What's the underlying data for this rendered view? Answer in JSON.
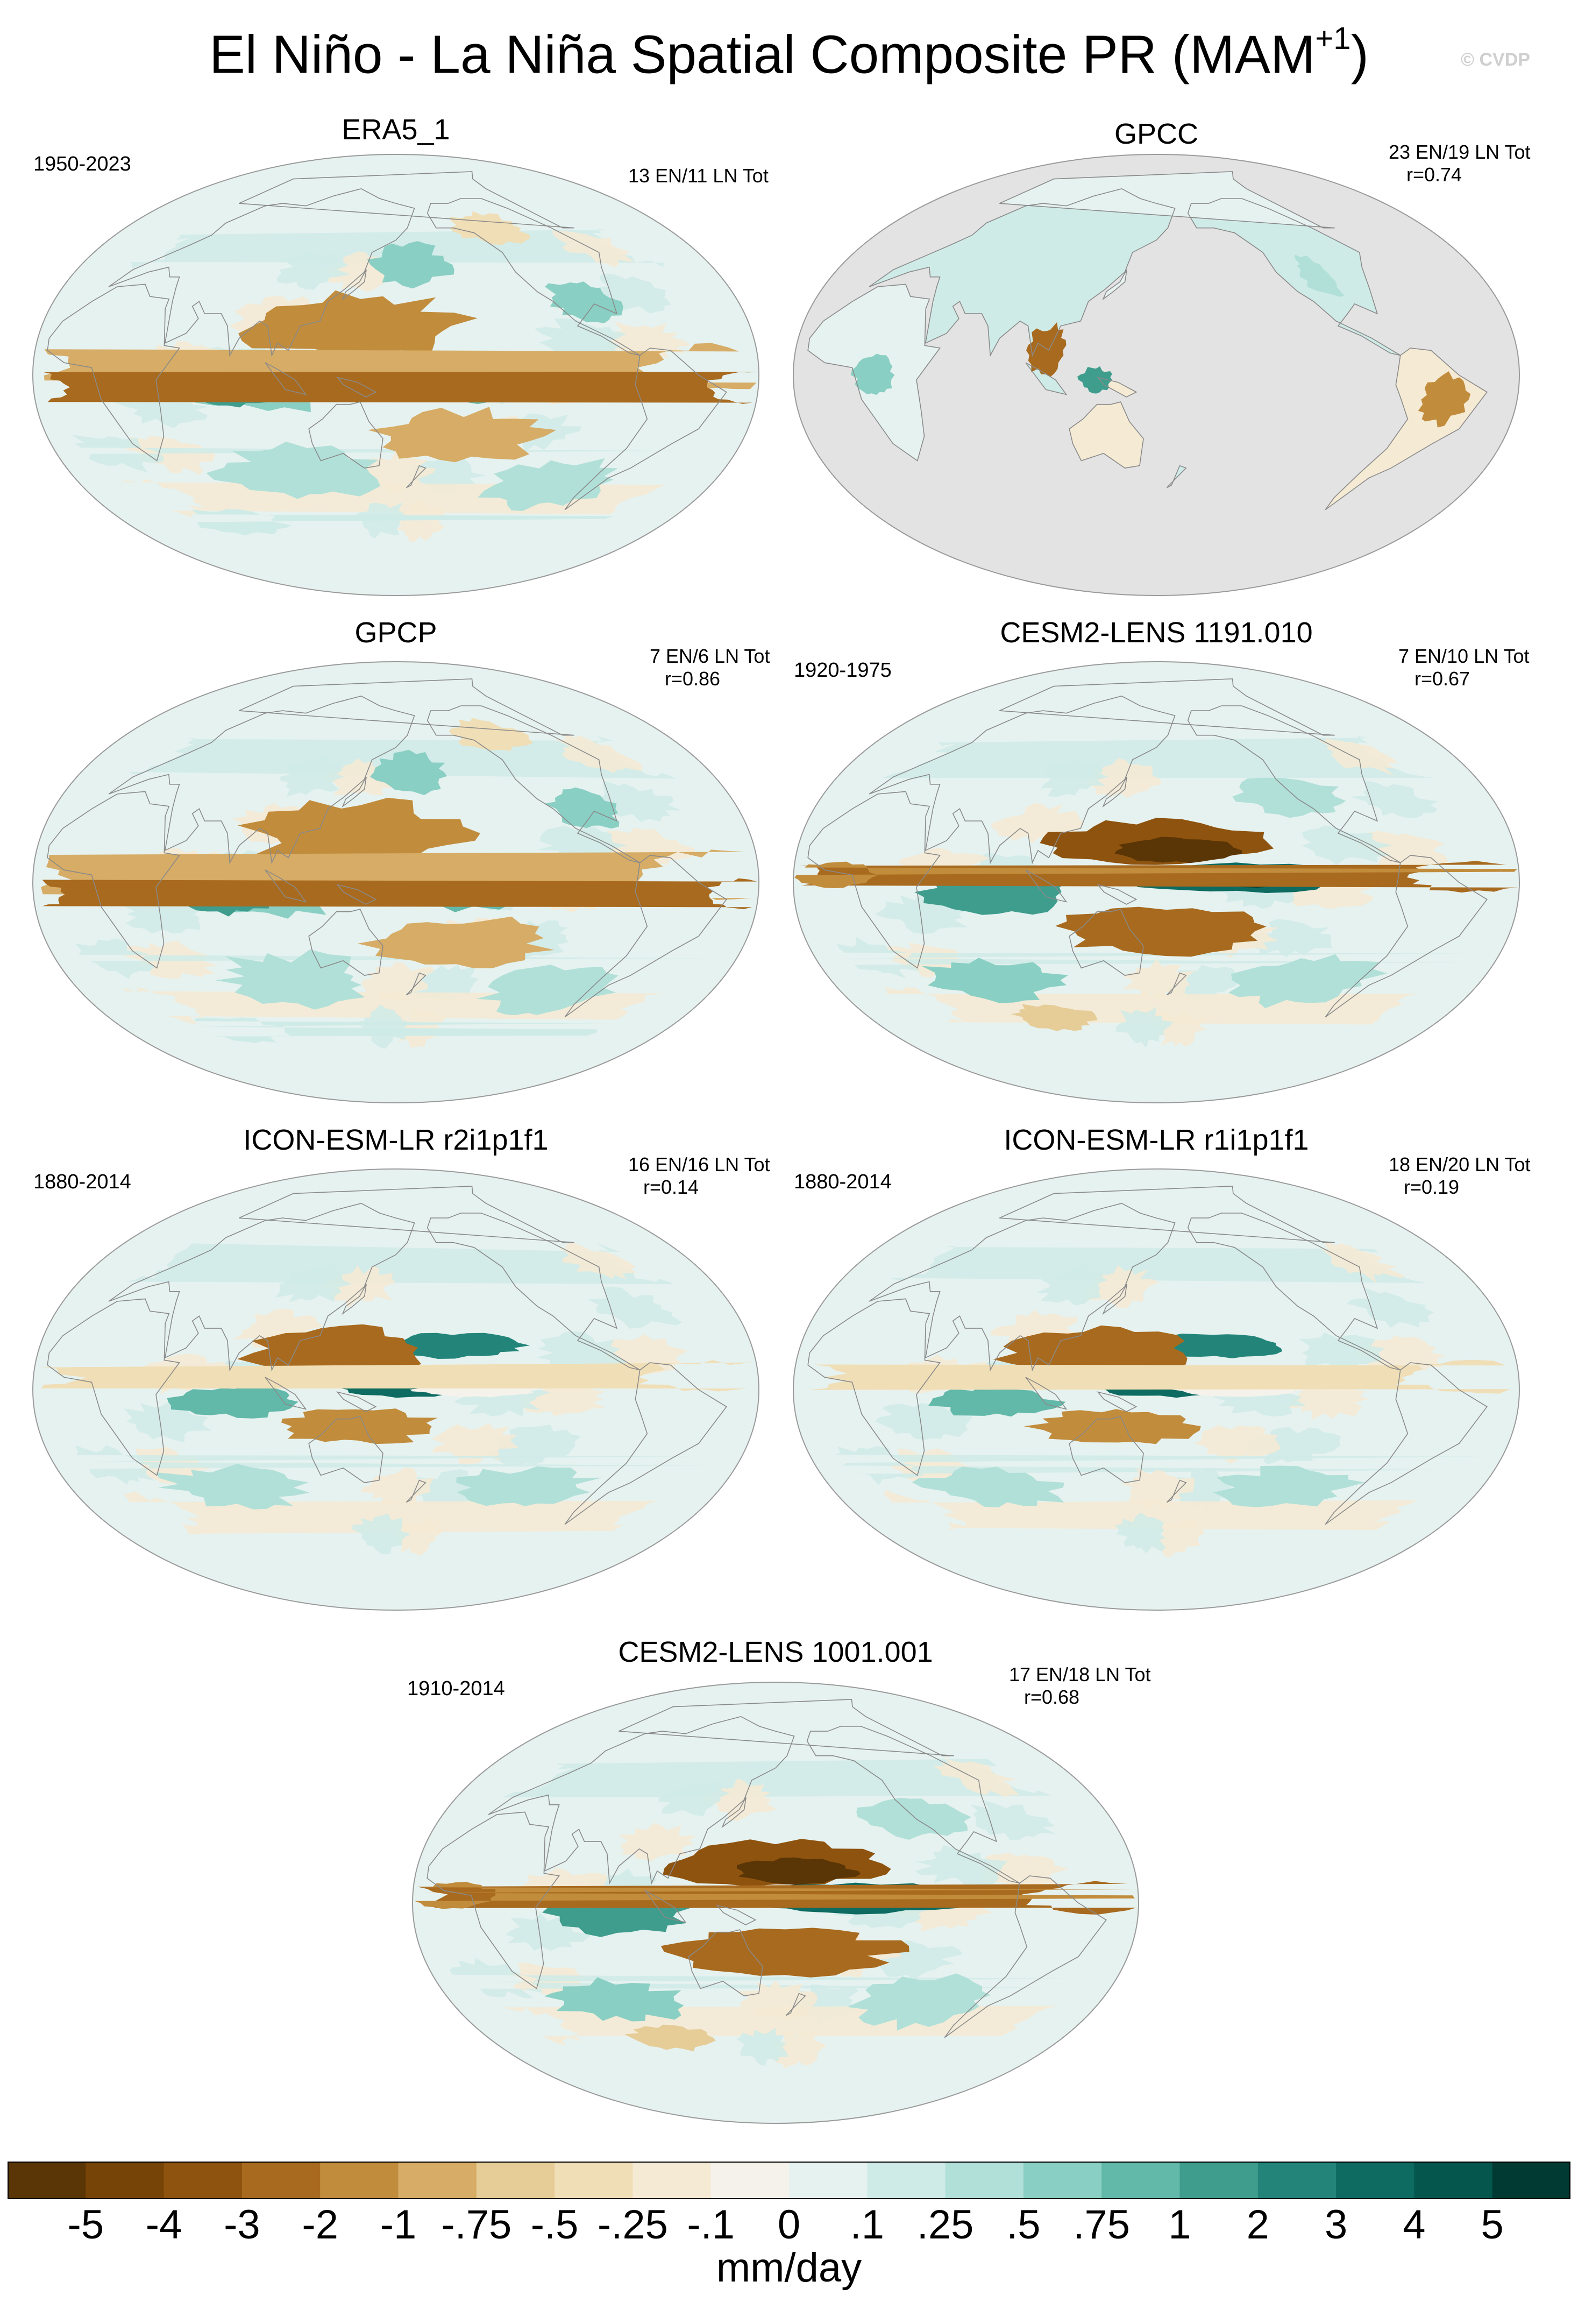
{
  "title": {
    "main": "El Niño - La Niña Spatial Composite PR (MAM",
    "superscript": "+1",
    "close": ")"
  },
  "watermark": "© CVDP",
  "panels": [
    {
      "id": "era5",
      "title": "ERA5_1",
      "years": "1950-2023",
      "events": "13 EN/11 LN Tot",
      "corr": "",
      "missing_ocean": false,
      "pattern": "obs"
    },
    {
      "id": "gpcc",
      "title": "GPCC",
      "years": "",
      "events": "23 EN/19 LN Tot",
      "corr": "r=0.74",
      "missing_ocean": true,
      "pattern": "obs"
    },
    {
      "id": "gpcp",
      "title": "GPCP",
      "years": "",
      "events": "7 EN/6 LN Tot",
      "corr": "r=0.86",
      "missing_ocean": false,
      "pattern": "obs"
    },
    {
      "id": "cesm1191",
      "title": "CESM2-LENS 1191.010",
      "years": "1920-1975",
      "events": "7 EN/10 LN Tot",
      "corr": "r=0.67",
      "missing_ocean": false,
      "pattern": "cesm"
    },
    {
      "id": "icon-r2",
      "title": "ICON-ESM-LR r2i1p1f1",
      "years": "1880-2014",
      "events": "16 EN/16 LN Tot",
      "corr": "r=0.14",
      "missing_ocean": false,
      "pattern": "icon"
    },
    {
      "id": "icon-r1",
      "title": "ICON-ESM-LR r1i1p1f1",
      "years": "1880-2014",
      "events": "18 EN/20 LN Tot",
      "corr": "r=0.19",
      "missing_ocean": false,
      "pattern": "icon"
    },
    {
      "id": "cesm1001",
      "title": "CESM2-LENS 1001.001",
      "years": "1910-2014",
      "events": "17 EN/18 LN Tot",
      "corr": "r=0.68",
      "missing_ocean": false,
      "pattern": "cesm"
    }
  ],
  "colorbar": {
    "units": "mm/day",
    "labels": [
      "-5",
      "-4",
      "-3",
      "-2",
      "-1",
      "-.75",
      "-.5",
      "-.25",
      "-.1",
      "0",
      ".1",
      ".25",
      ".5",
      ".75",
      "1",
      "2",
      "3",
      "4",
      "5"
    ],
    "colors": [
      "#5a3506",
      "#774408",
      "#8e530e",
      "#a86a1e",
      "#c18c3c",
      "#d6ac66",
      "#e6cc96",
      "#f0deb6",
      "#f5ead3",
      "#f5f2ec",
      "#e6f2f0",
      "#cfebe7",
      "#b1e0d8",
      "#8acfc3",
      "#62b8a9",
      "#3f9d8d",
      "#23857a",
      "#0d6b61",
      "#05564d",
      "#003a32"
    ]
  },
  "map_colors": {
    "ocean_missing": "#e3e3e3",
    "coast": "#8a8a8a",
    "frame": "#9a9a9a"
  }
}
